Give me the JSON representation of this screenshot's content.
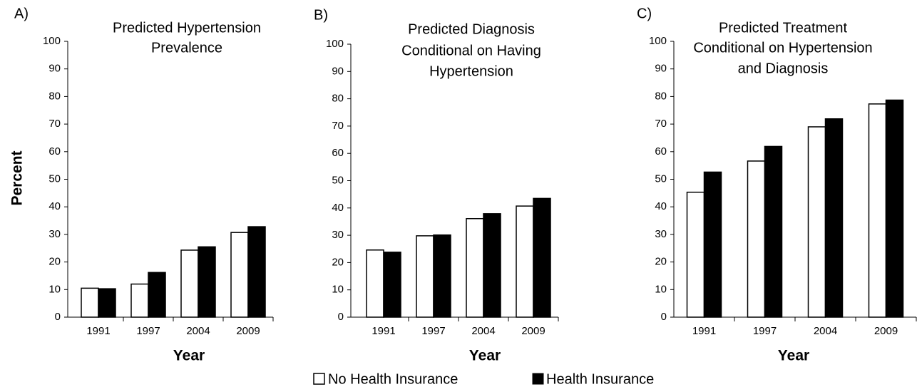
{
  "legend": [
    {
      "name": "No Health Insurance",
      "color": "#ffffff"
    },
    {
      "name": "Health Insurance",
      "color": "#000000"
    }
  ],
  "chart_data": [
    {
      "type": "bar",
      "panel": "A)",
      "title": [
        "Predicted Hypertension",
        "Prevalence"
      ],
      "y_label": "Percent",
      "x_label": "Year",
      "categories": [
        "1991",
        "1997",
        "2004",
        "2009"
      ],
      "series": [
        {
          "values": [
            10.5,
            12,
            24.3,
            30.7
          ]
        },
        {
          "values": [
            10.3,
            16.2,
            25.5,
            32.8
          ]
        }
      ],
      "ylim": [
        0,
        100
      ],
      "yticks": [
        0,
        10,
        20,
        30,
        40,
        50,
        60,
        70,
        80,
        90,
        100
      ]
    },
    {
      "type": "bar",
      "panel": "B)",
      "title": [
        "Predicted Diagnosis",
        "Conditional on Having",
        "Hypertension"
      ],
      "x_label": "Year",
      "categories": [
        "1991",
        "1997",
        "2004",
        "2009"
      ],
      "series": [
        {
          "values": [
            24.6,
            29.8,
            36.1,
            40.7
          ]
        },
        {
          "values": [
            23.8,
            30.1,
            37.9,
            43.5
          ]
        }
      ],
      "ylim": [
        0,
        100
      ],
      "yticks": [
        0,
        10,
        20,
        30,
        40,
        50,
        60,
        70,
        80,
        90,
        100
      ]
    },
    {
      "type": "bar",
      "panel": "C)",
      "title": [
        "Predicted Treatment",
        "Conditional on Hypertension",
        "and Diagnosis"
      ],
      "x_label": "Year",
      "categories": [
        "1991",
        "1997",
        "2004",
        "2009"
      ],
      "series": [
        {
          "values": [
            45.3,
            56.6,
            69,
            77.3
          ]
        },
        {
          "values": [
            52.6,
            61.9,
            71.9,
            78.7
          ]
        }
      ],
      "ylim": [
        0,
        100
      ],
      "yticks": [
        0,
        10,
        20,
        30,
        40,
        50,
        60,
        70,
        80,
        90,
        100
      ]
    }
  ]
}
